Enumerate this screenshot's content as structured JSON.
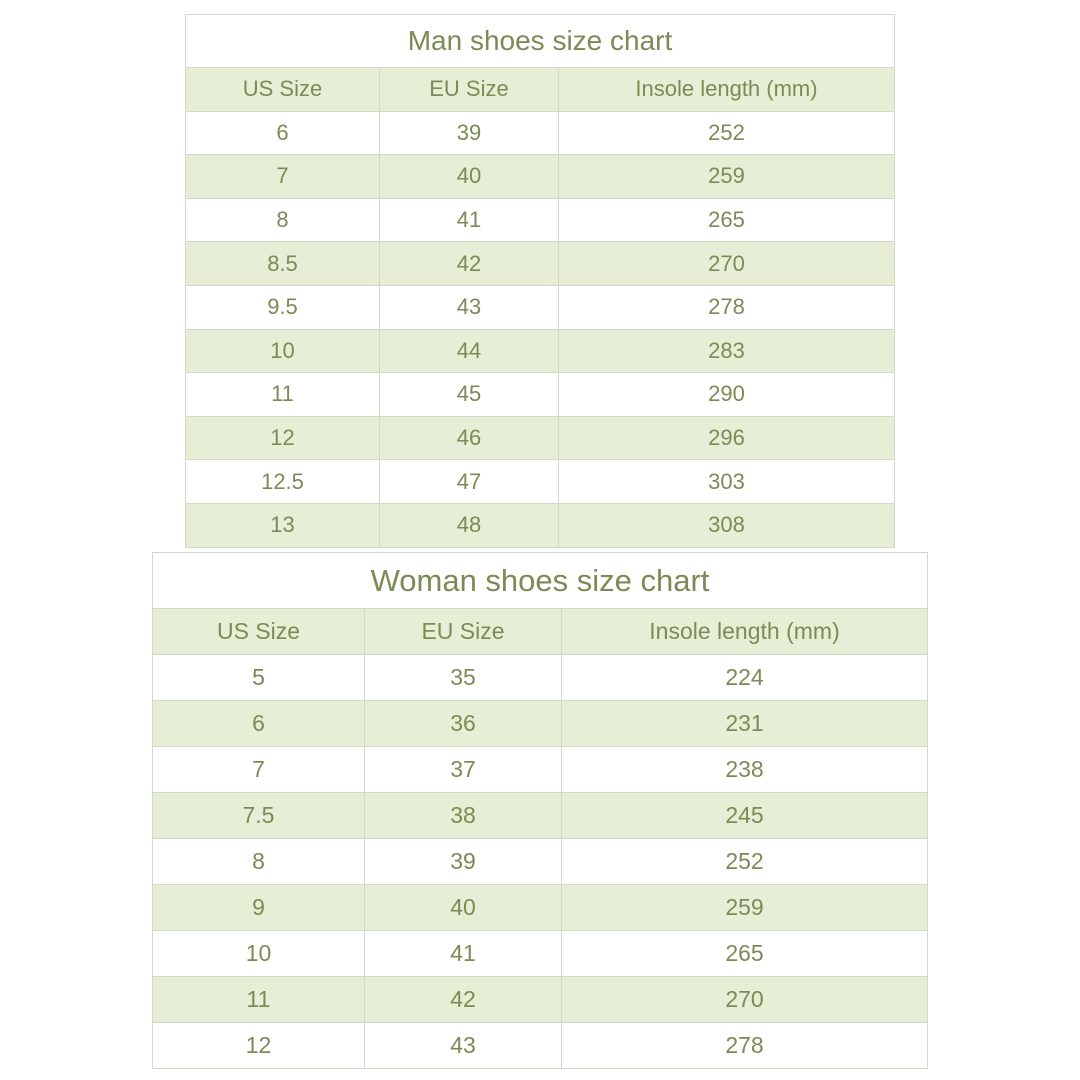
{
  "man_chart": {
    "title": "Man shoes size chart",
    "headers": [
      "US Size",
      "EU Size",
      "Insole length (mm)"
    ],
    "rows": [
      [
        "6",
        "39",
        "252"
      ],
      [
        "7",
        "40",
        "259"
      ],
      [
        "8",
        "41",
        "265"
      ],
      [
        "8.5",
        "42",
        "270"
      ],
      [
        "9.5",
        "43",
        "278"
      ],
      [
        "10",
        "44",
        "283"
      ],
      [
        "11",
        "45",
        "290"
      ],
      [
        "12",
        "46",
        "296"
      ],
      [
        "12.5",
        "47",
        "303"
      ],
      [
        "13",
        "48",
        "308"
      ]
    ]
  },
  "woman_chart": {
    "title": "Woman shoes size chart",
    "headers": [
      "US Size",
      "EU Size",
      "Insole length (mm)"
    ],
    "rows": [
      [
        "5",
        "35",
        "224"
      ],
      [
        "6",
        "36",
        "231"
      ],
      [
        "7",
        "37",
        "238"
      ],
      [
        "7.5",
        "38",
        "245"
      ],
      [
        "8",
        "39",
        "252"
      ],
      [
        "9",
        "40",
        "259"
      ],
      [
        "10",
        "41",
        "265"
      ],
      [
        "11",
        "42",
        "270"
      ],
      [
        "12",
        "43",
        "278"
      ]
    ]
  },
  "colors": {
    "text": "#7b8b56",
    "row_fill": "#e6eed6",
    "border": "#d3d9c8"
  }
}
